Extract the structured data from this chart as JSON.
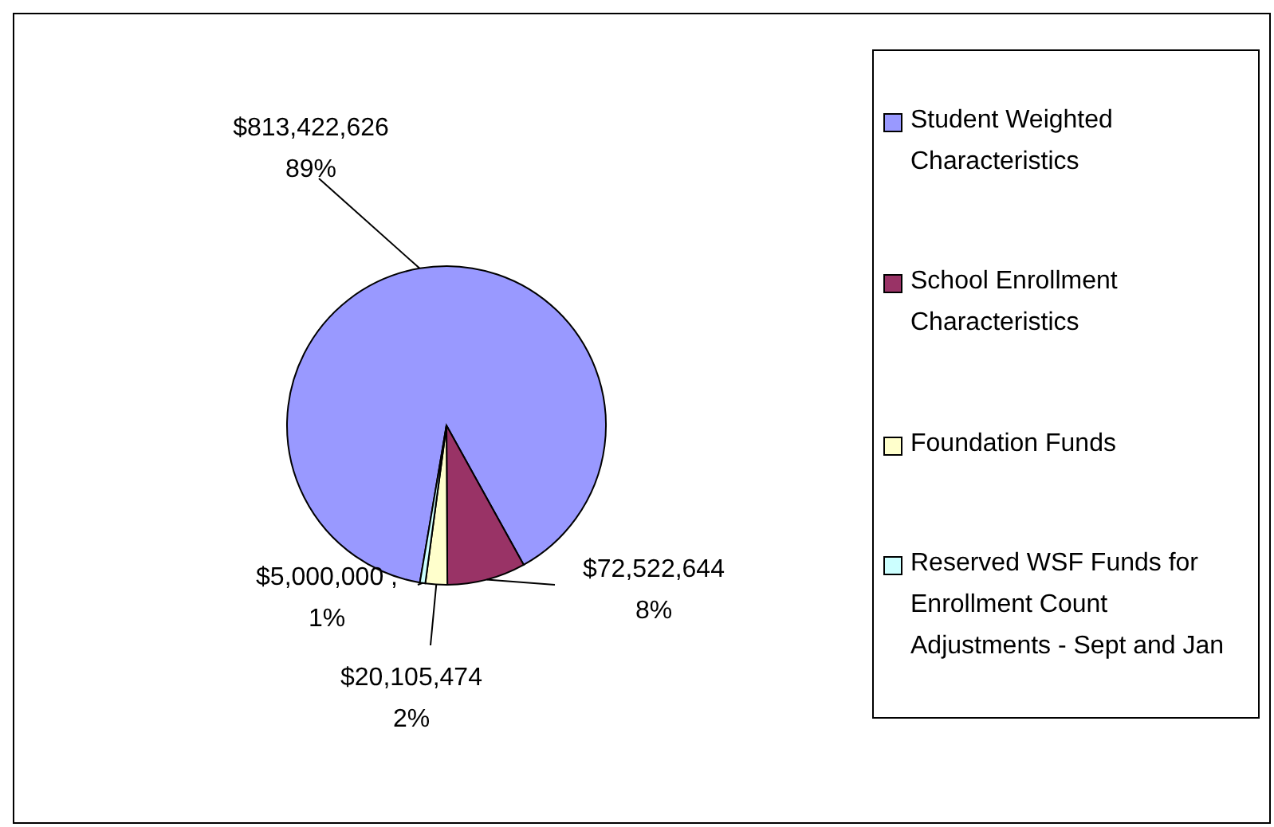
{
  "chart_data": {
    "type": "pie",
    "categories": [
      "Student Weighted Characteristics",
      "School Enrollment Characteristics",
      "Foundation Funds",
      "Reserved WSF Funds for Enrollment Count Adjustments - Sept and Jan"
    ],
    "values": [
      813422626,
      72522644,
      20105474,
      5000000
    ],
    "colors": [
      "#9999ff",
      "#993366",
      "#ffffcc",
      "#ccffff"
    ],
    "value_labels": [
      "$813,422,626\n89%",
      "$72,522,644\n8%",
      "$20,105,474\n2%",
      "$5,000,000 ,\n1%"
    ],
    "legend": "right"
  }
}
